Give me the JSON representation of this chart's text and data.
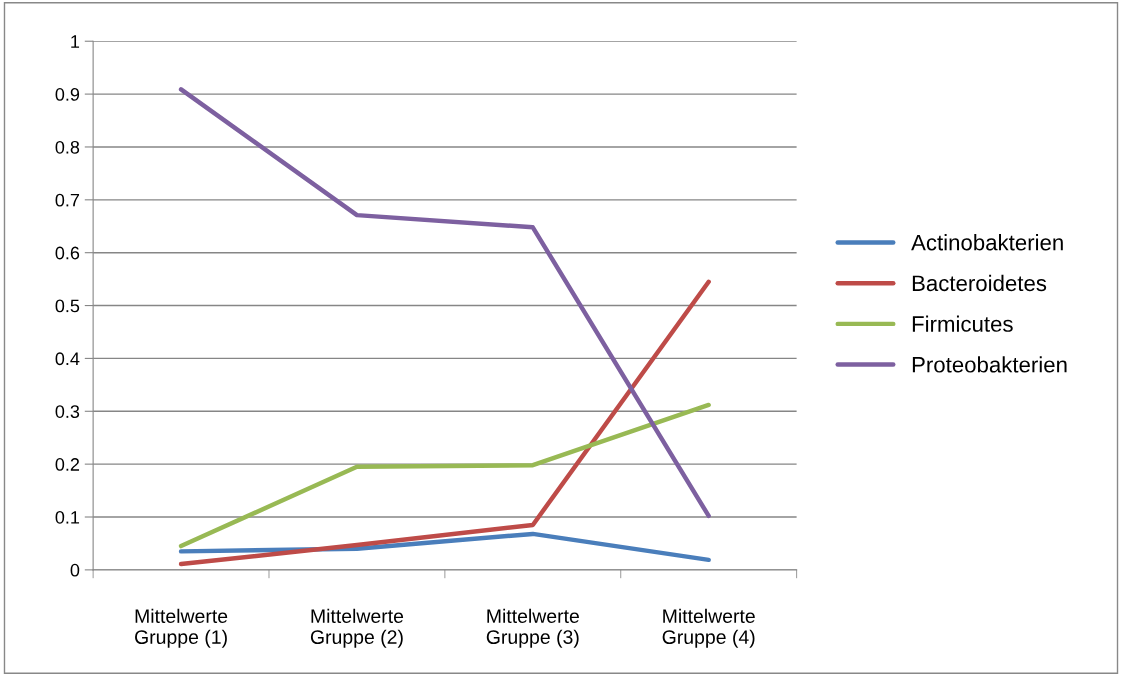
{
  "chart_data": {
    "type": "line",
    "categories": [
      "Mittelwerte\nGruppe (1)",
      "Mittelwerte\nGruppe (2)",
      "Mittelwerte\nGruppe (3)",
      "Mittelwerte\nGruppe (4)"
    ],
    "series": [
      {
        "name": "Actinobakterien",
        "color": "#4a7ebb",
        "values": [
          0.035,
          0.04,
          0.068,
          0.019
        ]
      },
      {
        "name": "Bacteroidetes",
        "color": "#be4b48",
        "values": [
          0.011,
          0.047,
          0.085,
          0.545
        ]
      },
      {
        "name": "Firmicutes",
        "color": "#98b954",
        "values": [
          0.045,
          0.195,
          0.198,
          0.312
        ]
      },
      {
        "name": "Proteobakterien",
        "color": "#7d60a0",
        "values": [
          0.909,
          0.671,
          0.648,
          0.102
        ]
      }
    ],
    "ylim": [
      0,
      1
    ],
    "yticks": [
      0,
      0.1,
      0.2,
      0.3,
      0.4,
      0.5,
      0.6,
      0.7,
      0.8,
      0.9,
      1
    ],
    "grid": "y",
    "legend": "right",
    "marker": "none",
    "line_style": "solid"
  }
}
